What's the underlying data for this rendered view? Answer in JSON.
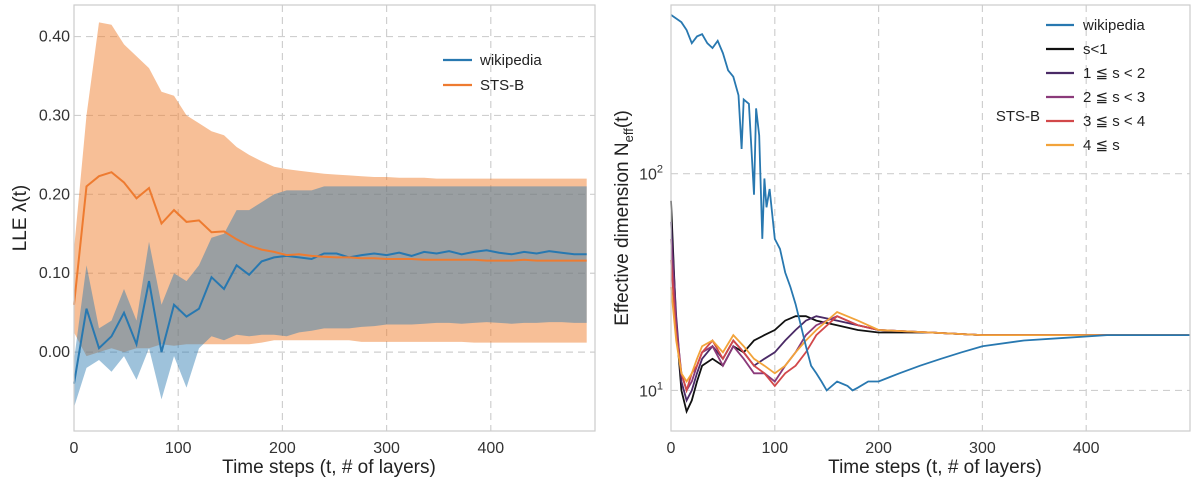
{
  "chart_data": [
    {
      "type": "line",
      "xlabel": "Time steps (t, # of layers)",
      "ylabel": "LLE λ(t)",
      "xlim": [
        0,
        500
      ],
      "ylim": [
        -0.1,
        0.44
      ],
      "xticks": [
        0,
        100,
        200,
        300,
        400
      ],
      "xtick_labels": [
        "0",
        "100",
        "200",
        "300",
        "400"
      ],
      "yticks": [
        0.0,
        0.1,
        0.2,
        0.3,
        0.4
      ],
      "ytick_labels": [
        "0.00",
        "0.10",
        "0.20",
        "0.30",
        "0.40"
      ],
      "grid": true,
      "legend_position": "top-right",
      "series": [
        {
          "name": "wikipedia",
          "color": "#2878b0",
          "x": [
            0,
            12,
            24,
            36,
            48,
            60,
            72,
            84,
            96,
            108,
            120,
            132,
            144,
            156,
            168,
            180,
            192,
            204,
            216,
            228,
            240,
            252,
            264,
            276,
            288,
            300,
            312,
            324,
            336,
            348,
            360,
            372,
            384,
            396,
            408,
            420,
            432,
            444,
            456,
            468,
            480,
            492
          ],
          "y": [
            -0.04,
            0.055,
            0.005,
            0.02,
            0.05,
            0.01,
            0.09,
            0.0,
            0.06,
            0.045,
            0.055,
            0.095,
            0.08,
            0.11,
            0.098,
            0.115,
            0.12,
            0.122,
            0.12,
            0.118,
            0.125,
            0.125,
            0.12,
            0.123,
            0.125,
            0.123,
            0.126,
            0.122,
            0.127,
            0.125,
            0.128,
            0.124,
            0.127,
            0.129,
            0.126,
            0.124,
            0.127,
            0.125,
            0.128,
            0.126,
            0.124,
            0.124
          ],
          "band_low": [
            -0.07,
            -0.02,
            -0.01,
            -0.025,
            -0.005,
            -0.035,
            0.005,
            -0.06,
            -0.005,
            -0.045,
            0.005,
            0.02,
            0.015,
            0.022,
            0.02,
            0.022,
            0.022,
            0.02,
            0.025,
            0.027,
            0.03,
            0.03,
            0.03,
            0.032,
            0.033,
            0.035,
            0.035,
            0.035,
            0.036,
            0.037,
            0.037,
            0.036,
            0.037,
            0.038,
            0.037,
            0.036,
            0.037,
            0.037,
            0.038,
            0.038,
            0.037,
            0.037
          ],
          "band_high": [
            -0.01,
            0.11,
            0.03,
            0.04,
            0.08,
            0.04,
            0.14,
            0.06,
            0.1,
            0.09,
            0.11,
            0.145,
            0.15,
            0.18,
            0.18,
            0.19,
            0.2,
            0.205,
            0.205,
            0.205,
            0.21,
            0.21,
            0.21,
            0.21,
            0.21,
            0.21,
            0.21,
            0.21,
            0.21,
            0.21,
            0.21,
            0.21,
            0.21,
            0.21,
            0.21,
            0.21,
            0.21,
            0.21,
            0.21,
            0.21,
            0.21,
            0.21
          ]
        },
        {
          "name": "STS-B",
          "color": "#ee7b30",
          "x": [
            0,
            12,
            24,
            36,
            48,
            60,
            72,
            84,
            96,
            108,
            120,
            132,
            144,
            156,
            168,
            180,
            192,
            204,
            216,
            228,
            240,
            252,
            264,
            276,
            288,
            300,
            312,
            324,
            336,
            348,
            360,
            372,
            384,
            396,
            408,
            420,
            432,
            444,
            456,
            468,
            480,
            492
          ],
          "y": [
            0.06,
            0.21,
            0.223,
            0.228,
            0.215,
            0.195,
            0.208,
            0.163,
            0.18,
            0.165,
            0.167,
            0.152,
            0.153,
            0.143,
            0.135,
            0.13,
            0.127,
            0.123,
            0.124,
            0.122,
            0.121,
            0.12,
            0.12,
            0.119,
            0.119,
            0.118,
            0.118,
            0.118,
            0.117,
            0.117,
            0.117,
            0.117,
            0.117,
            0.116,
            0.116,
            0.116,
            0.117,
            0.116,
            0.116,
            0.116,
            0.116,
            0.116
          ],
          "band_low": [
            0.025,
            -0.005,
            0.0,
            0.005,
            0.0,
            0.005,
            0.005,
            0.01,
            0.008,
            0.01,
            0.01,
            0.01,
            0.01,
            0.01,
            0.01,
            0.012,
            0.015,
            0.015,
            0.015,
            0.015,
            0.015,
            0.015,
            0.015,
            0.013,
            0.013,
            0.013,
            0.013,
            0.013,
            0.013,
            0.013,
            0.013,
            0.013,
            0.012,
            0.012,
            0.012,
            0.012,
            0.012,
            0.012,
            0.012,
            0.012,
            0.012,
            0.012
          ],
          "band_high": [
            0.13,
            0.3,
            0.418,
            0.415,
            0.39,
            0.375,
            0.36,
            0.33,
            0.325,
            0.3,
            0.29,
            0.28,
            0.275,
            0.26,
            0.25,
            0.242,
            0.235,
            0.232,
            0.23,
            0.228,
            0.226,
            0.225,
            0.224,
            0.223,
            0.222,
            0.222,
            0.221,
            0.221,
            0.221,
            0.22,
            0.22,
            0.22,
            0.22,
            0.22,
            0.22,
            0.22,
            0.22,
            0.22,
            0.22,
            0.22,
            0.22,
            0.22
          ]
        }
      ]
    },
    {
      "type": "line",
      "xlabel": "Time steps (t, # of layers)",
      "ylabel": "Effective dimension N_eff(t)",
      "xlim": [
        0,
        500
      ],
      "ylim": [
        6.5,
        600
      ],
      "yscale": "log",
      "xticks": [
        0,
        100,
        200,
        300,
        400
      ],
      "xtick_labels": [
        "0",
        "100",
        "200",
        "300",
        "400"
      ],
      "yticks": [
        10,
        100
      ],
      "grid": true,
      "legend_position": "top-right",
      "legend_group_label": "STS-B",
      "series": [
        {
          "name": "wikipedia",
          "color": "#2878b0",
          "x": [
            0,
            10,
            15,
            20,
            25,
            30,
            35,
            40,
            45,
            50,
            55,
            60,
            65,
            68,
            70,
            75,
            80,
            82,
            85,
            88,
            90,
            92,
            95,
            100,
            105,
            110,
            115,
            120,
            125,
            130,
            135,
            140,
            145,
            150,
            160,
            170,
            175,
            180,
            190,
            200,
            220,
            240,
            260,
            280,
            300,
            340,
            380,
            420,
            460,
            500
          ],
          "y": [
            540,
            500,
            460,
            400,
            430,
            440,
            400,
            380,
            410,
            360,
            300,
            280,
            230,
            130,
            220,
            210,
            80,
            200,
            150,
            50,
            95,
            70,
            85,
            50,
            45,
            35,
            30,
            25,
            20,
            16,
            13,
            12,
            11,
            10,
            11,
            10.5,
            10,
            10.3,
            11,
            11,
            12,
            13,
            14,
            15,
            16,
            17,
            17.5,
            18,
            18,
            18
          ]
        },
        {
          "name": "s<1",
          "color": "#111111",
          "x": [
            0,
            5,
            10,
            15,
            20,
            25,
            30,
            40,
            50,
            60,
            70,
            80,
            90,
            100,
            110,
            120,
            130,
            140,
            160,
            180,
            200,
            250,
            300,
            350,
            400,
            450,
            500
          ],
          "y": [
            75,
            20,
            10,
            8,
            9,
            11,
            13,
            14,
            13,
            16,
            15,
            17,
            18,
            19,
            21,
            22,
            22,
            21,
            20,
            19,
            18.5,
            18.5,
            18,
            18,
            18,
            18,
            18
          ]
        },
        {
          "name": "1 ≦ s < 2",
          "color": "#4a2a66",
          "x": [
            0,
            5,
            10,
            15,
            20,
            25,
            30,
            40,
            50,
            60,
            70,
            80,
            90,
            100,
            110,
            120,
            130,
            140,
            160,
            180,
            200,
            250,
            300,
            350,
            400,
            450,
            500
          ],
          "y": [
            60,
            22,
            11,
            9,
            10,
            12,
            14,
            16,
            14,
            17,
            15,
            13,
            14,
            15,
            17,
            19,
            21,
            22,
            21,
            20,
            19,
            18.5,
            18,
            18,
            18,
            18,
            18
          ]
        },
        {
          "name": "2 ≦ s < 3",
          "color": "#8b3a7a",
          "x": [
            0,
            5,
            10,
            15,
            20,
            25,
            30,
            40,
            50,
            60,
            70,
            80,
            90,
            100,
            110,
            120,
            130,
            140,
            160,
            180,
            200,
            250,
            300,
            350,
            400,
            450,
            500
          ],
          "y": [
            50,
            20,
            12,
            10,
            11,
            13,
            15,
            16,
            13,
            16,
            14,
            12,
            12,
            11,
            13,
            15,
            18,
            20,
            22,
            20,
            19,
            18.5,
            18,
            18,
            18,
            18,
            18
          ]
        },
        {
          "name": "3 ≦ s < 4",
          "color": "#d2484a",
          "x": [
            0,
            5,
            10,
            15,
            20,
            25,
            30,
            40,
            50,
            60,
            70,
            80,
            90,
            100,
            110,
            120,
            130,
            140,
            160,
            180,
            200,
            250,
            300,
            350,
            400,
            450,
            500
          ],
          "y": [
            40,
            18,
            12,
            10,
            12,
            13,
            15,
            17,
            14,
            17,
            15,
            13,
            12,
            10.5,
            12,
            13,
            15,
            18,
            22,
            20,
            19,
            18.5,
            18,
            18,
            18,
            18,
            18
          ]
        },
        {
          "name": "4 ≦ s",
          "color": "#f2a33a",
          "x": [
            0,
            5,
            10,
            15,
            20,
            25,
            30,
            40,
            50,
            60,
            70,
            80,
            90,
            100,
            110,
            120,
            130,
            140,
            160,
            180,
            200,
            250,
            300,
            350,
            400,
            450,
            500
          ],
          "y": [
            30,
            17,
            12,
            11,
            12,
            14,
            16,
            17,
            15,
            18,
            16,
            14,
            13,
            12,
            13,
            15,
            17,
            19,
            23,
            21,
            19,
            18.5,
            18,
            18,
            18,
            18,
            18
          ]
        }
      ]
    }
  ]
}
